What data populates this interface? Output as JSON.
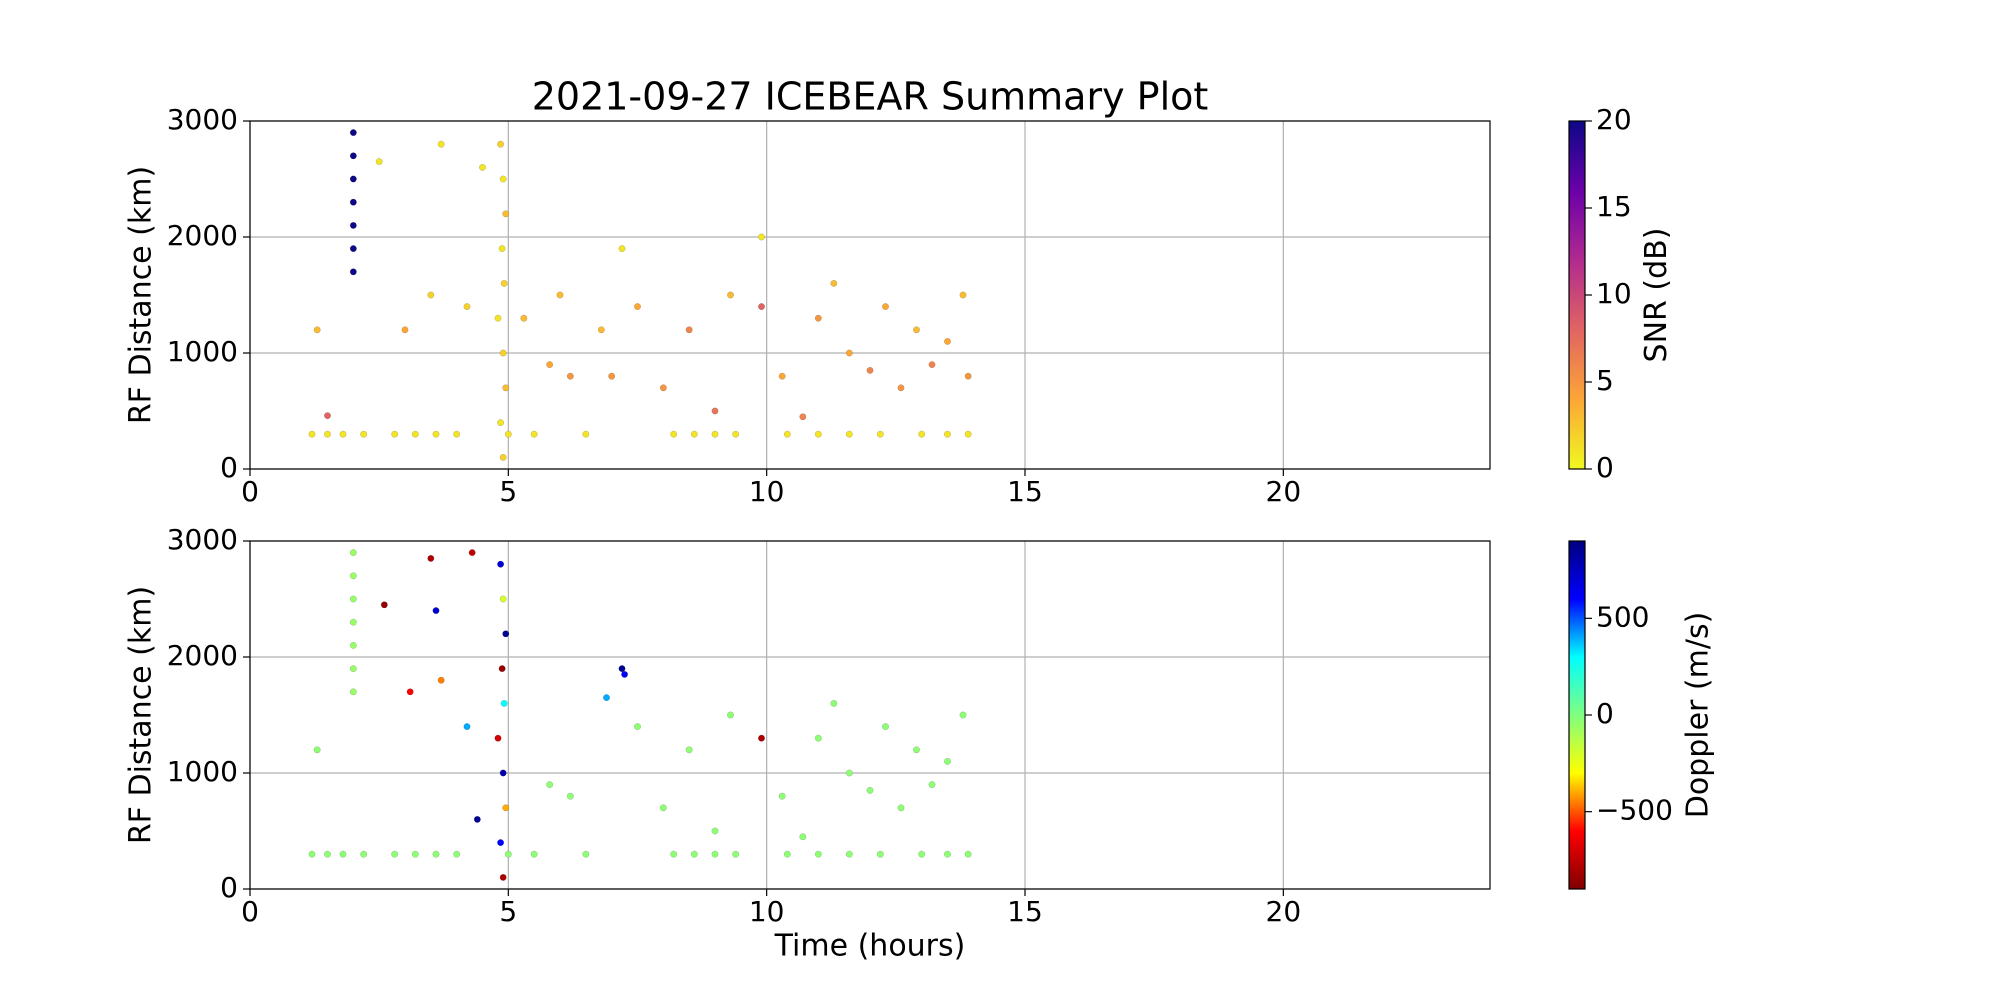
{
  "chart_data": [
    {
      "type": "scatter",
      "title": "2021-09-27 ICEBEAR Summary Plot",
      "ylabel": "RF Distance (km)",
      "xlim": [
        0,
        24
      ],
      "ylim": [
        0,
        3000
      ],
      "xticks": [
        0,
        5,
        10,
        15,
        20
      ],
      "yticks": [
        0,
        1000,
        2000,
        3000
      ],
      "grid": true,
      "x": [
        1.2,
        1.5,
        1.8,
        2.2,
        2.8,
        3.2,
        3.6,
        4.0,
        5.0,
        5.5,
        6.5,
        8.2,
        8.6,
        9.0,
        9.4,
        10.4,
        11.0,
        11.6,
        12.2,
        13.0,
        13.5,
        13.9,
        4.9,
        4.85,
        4.95,
        4.9,
        4.8,
        4.92,
        4.88,
        4.95,
        4.9,
        4.85,
        1.3,
        1.5,
        2.5,
        3.0,
        3.5,
        3.7,
        4.2,
        4.5,
        5.3,
        5.8,
        6.2,
        6.8,
        7.2,
        7.5,
        8.0,
        8.5,
        9.0,
        9.3,
        9.9,
        9.9,
        10.3,
        10.7,
        11.0,
        11.3,
        11.6,
        12.0,
        12.3,
        12.6,
        12.9,
        13.2,
        13.5,
        13.8,
        13.9,
        7.0,
        6.0,
        2.0,
        2.0,
        2.0,
        2.0,
        2.0,
        2.0,
        2.0
      ],
      "y": [
        300,
        300,
        300,
        300,
        300,
        300,
        300,
        300,
        300,
        300,
        300,
        300,
        300,
        300,
        300,
        300,
        300,
        300,
        300,
        300,
        300,
        300,
        100,
        400,
        700,
        1000,
        1300,
        1600,
        1900,
        2200,
        2500,
        2800,
        1200,
        460,
        2650,
        1200,
        1500,
        2800,
        1400,
        2600,
        1300,
        900,
        800,
        1200,
        1900,
        1400,
        700,
        1200,
        500,
        1500,
        1400,
        2000,
        800,
        450,
        1300,
        1600,
        1000,
        850,
        1400,
        700,
        1200,
        900,
        1100,
        1500,
        800,
        800,
        1500,
        1700,
        1900,
        2100,
        2300,
        2500,
        2700,
        2900
      ],
      "c": [
        1,
        1,
        1,
        1,
        1,
        1,
        1,
        1,
        1,
        1,
        1,
        1,
        1,
        1,
        1,
        1,
        1,
        1,
        1,
        1,
        1,
        1,
        2,
        1,
        3,
        2,
        1,
        2,
        1,
        3,
        1,
        2,
        3,
        8,
        1,
        4,
        2,
        1,
        2,
        1,
        3,
        4,
        5,
        3,
        1,
        4,
        5,
        6,
        7,
        3,
        8,
        1,
        4,
        6,
        5,
        3,
        4,
        6,
        4,
        5,
        3,
        6,
        4,
        3,
        5,
        5,
        3,
        20,
        20,
        20,
        20,
        20,
        20,
        20
      ],
      "colorbar": {
        "label": "SNR (dB)",
        "lim": [
          0,
          20
        ],
        "ticks": [
          0,
          5,
          10,
          15,
          20
        ],
        "colormap": [
          "#f0f921",
          "#fca636",
          "#e16462",
          "#b12a90",
          "#6a00a8",
          "#0d0887"
        ]
      }
    },
    {
      "type": "scatter",
      "ylabel": "RF Distance (km)",
      "xlabel": "Time (hours)",
      "xlim": [
        0,
        24
      ],
      "ylim": [
        0,
        3000
      ],
      "xticks": [
        0,
        5,
        10,
        15,
        20
      ],
      "yticks": [
        0,
        1000,
        2000,
        3000
      ],
      "grid": true,
      "x": [
        1.2,
        1.5,
        1.8,
        2.2,
        2.8,
        3.2,
        3.6,
        4.0,
        5.0,
        5.5,
        6.5,
        8.2,
        8.6,
        9.0,
        9.4,
        10.4,
        11.0,
        11.6,
        12.2,
        13.0,
        13.5,
        13.9,
        4.9,
        4.85,
        4.95,
        4.9,
        4.8,
        4.92,
        4.88,
        4.95,
        4.9,
        4.85,
        3.5,
        3.6,
        3.7,
        4.2,
        4.3,
        4.4,
        3.1,
        2.6,
        1.3,
        5.8,
        6.2,
        6.9,
        7.2,
        7.25,
        7.5,
        8.0,
        8.5,
        9.0,
        9.3,
        9.9,
        10.3,
        10.7,
        11.0,
        11.3,
        11.6,
        12.0,
        12.3,
        12.6,
        12.9,
        13.2,
        13.5,
        13.8,
        2.0,
        2.0,
        2.0,
        2.0,
        2.0,
        2.0,
        2.0
      ],
      "y": [
        300,
        300,
        300,
        300,
        300,
        300,
        300,
        300,
        300,
        300,
        300,
        300,
        300,
        300,
        300,
        300,
        300,
        300,
        300,
        300,
        300,
        300,
        100,
        400,
        700,
        1000,
        1300,
        1600,
        1900,
        2200,
        2500,
        2800,
        2850,
        2400,
        1800,
        1400,
        2900,
        600,
        1700,
        2450,
        1200,
        900,
        800,
        1650,
        1900,
        1850,
        1400,
        700,
        1200,
        500,
        1500,
        1300,
        800,
        450,
        1300,
        1600,
        1000,
        850,
        1400,
        700,
        1200,
        900,
        1100,
        1500,
        1700,
        1900,
        2100,
        2300,
        2500,
        2700,
        2900
      ],
      "c": [
        -30,
        -30,
        -30,
        -30,
        -30,
        -30,
        -30,
        -30,
        -30,
        -30,
        -30,
        -30,
        -30,
        -30,
        -30,
        -30,
        -30,
        -30,
        -30,
        -30,
        -30,
        -30,
        -800,
        600,
        -400,
        800,
        -700,
        300,
        -850,
        850,
        -200,
        700,
        -800,
        700,
        -450,
        400,
        -750,
        850,
        -600,
        -850,
        -30,
        -30,
        -30,
        400,
        850,
        600,
        -30,
        -30,
        -30,
        -30,
        -30,
        -800,
        -30,
        -30,
        -30,
        -30,
        -30,
        -30,
        -30,
        -30,
        -30,
        -30,
        -30,
        -30,
        -60,
        -60,
        -60,
        -60,
        -60,
        -60,
        -60
      ],
      "colorbar": {
        "label": "Doppler (m/s)",
        "lim": [
          -900,
          900
        ],
        "ticks": [
          {
            "value": -500,
            "label": "−500"
          },
          0,
          500
        ],
        "colormap": [
          "#800000",
          "#ff0000",
          "#ffff00",
          "#80ff80",
          "#00ffff",
          "#0000ff",
          "#000080"
        ]
      }
    }
  ]
}
